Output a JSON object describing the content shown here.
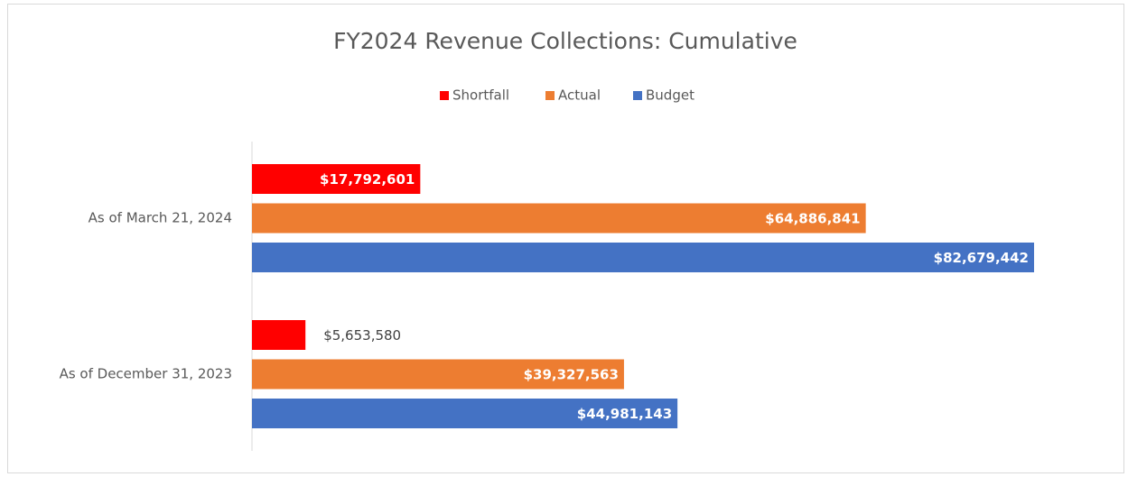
{
  "chart_data": {
    "type": "hbar",
    "title": "FY2024 Revenue Collections: Cumulative",
    "categories": [
      "As of March 21, 2024",
      "As of December 31, 2023"
    ],
    "series": [
      {
        "name": "Shortfall",
        "color": "#ff0000",
        "values": [
          17792601,
          5653580
        ],
        "value_labels": [
          "$17,792,601",
          "$5,653,580"
        ]
      },
      {
        "name": "Actual",
        "color": "#ed7d31",
        "values": [
          64886841,
          39327563
        ],
        "value_labels": [
          "$64,886,841",
          "$39,327,563"
        ]
      },
      {
        "name": "Budget",
        "color": "#4472c4",
        "values": [
          82679442,
          44981143
        ],
        "value_labels": [
          "$82,679,442",
          "$44,981,143"
        ]
      }
    ],
    "legend": "top"
  }
}
